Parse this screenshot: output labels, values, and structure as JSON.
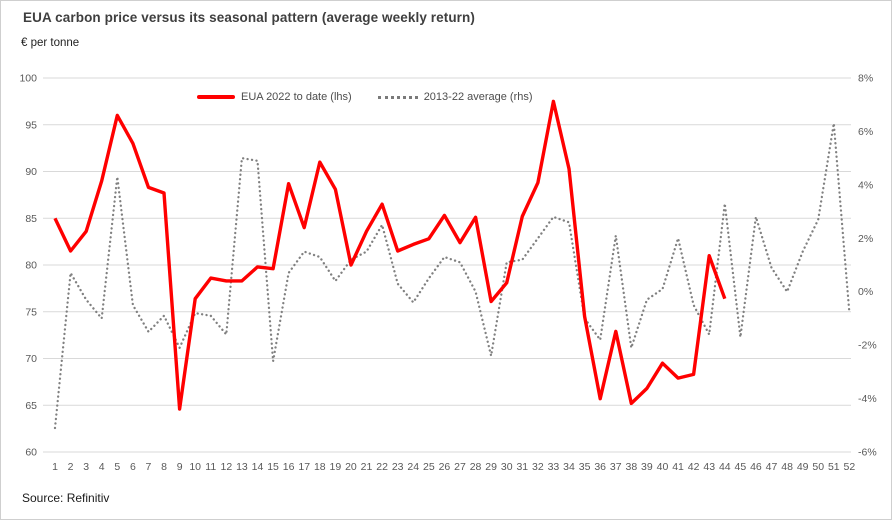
{
  "header": {
    "title": "EUA carbon price versus its seasonal pattern (average weekly return)",
    "unit_label": "€ per tonne",
    "source": "Source: Refinitiv"
  },
  "legend": {
    "series1_label": "EUA 2022 to date (lhs)",
    "series2_label": "2013-22 average (rhs)"
  },
  "colors": {
    "series1": "#ff0000",
    "series2": "#808080",
    "gridline": "#d9d9d9",
    "axis_text": "#595959"
  },
  "chart_data": {
    "type": "line",
    "title": "EUA carbon price versus its seasonal pattern (average weekly return)",
    "x": [
      1,
      2,
      3,
      4,
      5,
      6,
      7,
      8,
      9,
      10,
      11,
      12,
      13,
      14,
      15,
      16,
      17,
      18,
      19,
      20,
      21,
      22,
      23,
      24,
      25,
      26,
      27,
      28,
      29,
      30,
      31,
      32,
      33,
      34,
      35,
      36,
      37,
      38,
      39,
      40,
      41,
      42,
      43,
      44,
      45,
      46,
      47,
      48,
      49,
      50,
      51,
      52
    ],
    "series": [
      {
        "name": "EUA 2022 to date (lhs)",
        "axis": "left",
        "style": "solid",
        "color": "#ff0000",
        "values": [
          85,
          81.5,
          83.6,
          89,
          96,
          93,
          88.3,
          87.7,
          64.6,
          76.4,
          78.6,
          78.3,
          78.3,
          79.8,
          79.6,
          88.7,
          84,
          91,
          88.1,
          80,
          83.6,
          86.5,
          81.5,
          82.2,
          82.8,
          85.3,
          82.4,
          85.1,
          76.1,
          78.1,
          85.2,
          88.8,
          97.5,
          90.3,
          74.5,
          65.7,
          72.9,
          65.2,
          66.8,
          69.5,
          67.9,
          68.3,
          81,
          76.4
        ]
      },
      {
        "name": "2013-22 average (rhs)",
        "axis": "right",
        "style": "dotted",
        "color": "#808080",
        "values": [
          -5.1,
          0.7,
          -0.3,
          -1,
          4.3,
          -0.5,
          -1.5,
          -0.9,
          -2.1,
          -0.8,
          -0.9,
          -1.6,
          5,
          4.9,
          -2.6,
          0.7,
          1.5,
          1.3,
          0.4,
          1.2,
          1.5,
          2.5,
          0.3,
          -0.4,
          0.5,
          1.3,
          1.1,
          0,
          -2.4,
          1.1,
          1.2,
          2,
          2.8,
          2.6,
          -1,
          -1.8,
          2.1,
          -2.1,
          -0.3,
          0.1,
          2,
          -0.5,
          -1.6,
          3.3,
          -1.7,
          2.8,
          0.9,
          0,
          1.5,
          2.7,
          6.3,
          -0.8
        ]
      }
    ],
    "left_axis": {
      "label": "€ per tonne",
      "min": 60,
      "max": 100,
      "ticks": [
        "100",
        "95",
        "90",
        "85",
        "80",
        "75",
        "70",
        "65",
        "60"
      ]
    },
    "right_axis": {
      "label": "average weekly return",
      "min": -6,
      "max": 8,
      "ticks": [
        "8%",
        "6%",
        "4%",
        "2%",
        "0%",
        "-2%",
        "-4%",
        "-6%"
      ]
    },
    "grid": true,
    "legend_position": "top"
  }
}
